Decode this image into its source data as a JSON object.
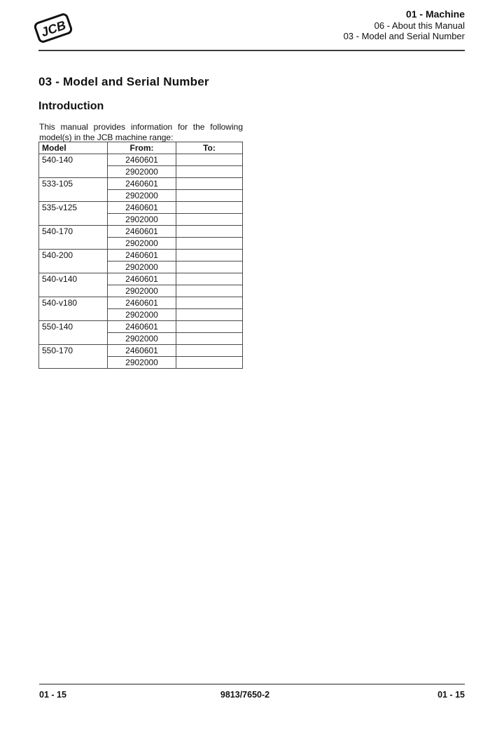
{
  "header": {
    "logo_text": "JCB",
    "line1": "01 - Machine",
    "line2": "06 - About this Manual",
    "line3": "03 - Model and Serial Number"
  },
  "content": {
    "title": "03 - Model and Serial Number",
    "section_heading": "Introduction",
    "intro_line1": "This manual provides information for the following",
    "intro_line2": "model(s) in the JCB machine range:"
  },
  "table": {
    "columns": [
      "Model",
      "From:",
      "To:"
    ],
    "rows": [
      {
        "model": "540-140",
        "from": [
          "2460601",
          "2902000"
        ],
        "to": [
          "",
          ""
        ]
      },
      {
        "model": "533-105",
        "from": [
          "2460601",
          "2902000"
        ],
        "to": [
          "",
          ""
        ]
      },
      {
        "model": "535-v125",
        "from": [
          "2460601",
          "2902000"
        ],
        "to": [
          "",
          ""
        ]
      },
      {
        "model": "540-170",
        "from": [
          "2460601",
          "2902000"
        ],
        "to": [
          "",
          ""
        ]
      },
      {
        "model": "540-200",
        "from": [
          "2460601",
          "2902000"
        ],
        "to": [
          "",
          ""
        ]
      },
      {
        "model": "540-v140",
        "from": [
          "2460601",
          "2902000"
        ],
        "to": [
          "",
          ""
        ]
      },
      {
        "model": "540-v180",
        "from": [
          "2460601",
          "2902000"
        ],
        "to": [
          "",
          ""
        ]
      },
      {
        "model": "550-140",
        "from": [
          "2460601",
          "2902000"
        ],
        "to": [
          "",
          ""
        ]
      },
      {
        "model": "550-170",
        "from": [
          "2460601",
          "2902000"
        ],
        "to": [
          "",
          ""
        ]
      }
    ]
  },
  "footer": {
    "left": "01 - 15",
    "center": "9813/7650-2",
    "right": "01 - 15"
  },
  "colors": {
    "text": "#111111",
    "header_rule": "#3d3d3d",
    "footer_rule": "#8a8a8a",
    "table_border": "#4a4a4a",
    "page_background": "#ffffff"
  }
}
